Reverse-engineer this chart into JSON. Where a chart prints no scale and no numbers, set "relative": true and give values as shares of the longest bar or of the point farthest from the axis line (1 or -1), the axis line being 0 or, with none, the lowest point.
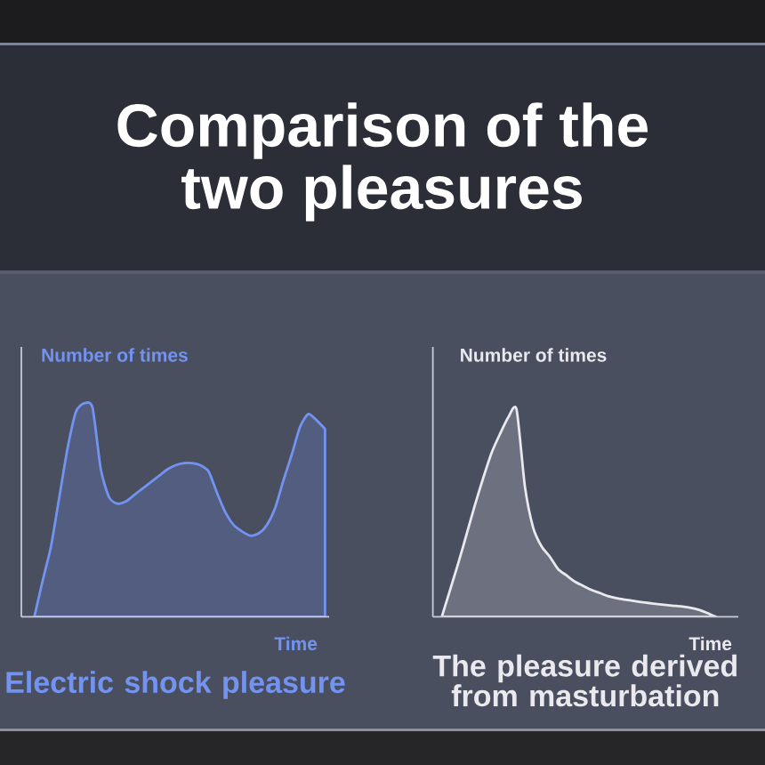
{
  "chart_data": [
    {
      "type": "other",
      "title": "Comparison of the two pleasures"
    },
    {
      "type": "area",
      "title": "Electric shock pleasure",
      "xlabel": "Time",
      "ylabel": "Number of times",
      "relative": true,
      "color": "#7393f0",
      "categories": [
        null,
        null,
        null,
        null,
        null,
        null,
        null,
        null,
        null,
        null,
        null,
        null,
        null,
        null,
        null,
        null,
        null,
        null,
        null,
        null,
        null,
        null,
        null,
        null,
        null,
        null,
        null,
        null,
        null,
        null,
        null,
        null,
        null,
        null,
        null,
        null
      ],
      "values": [
        0,
        0.17,
        0.33,
        0.56,
        0.79,
        0.96,
        1,
        0.98,
        0.69,
        0.56,
        0.53,
        0.54,
        0.57,
        0.6,
        0.63,
        0.66,
        0.69,
        0.71,
        0.72,
        0.72,
        0.71,
        0.68,
        0.58,
        0.49,
        0.43,
        0.4,
        0.38,
        0.39,
        0.43,
        0.51,
        0.64,
        0.76,
        0.89,
        0.95,
        0.92,
        0.88
      ]
    },
    {
      "type": "area",
      "title": "The pleasure derived from masturbation",
      "xlabel": "Time",
      "ylabel": "Number of times",
      "relative": true,
      "color": "#e9e9ee",
      "categories": [
        null,
        null,
        null,
        null,
        null,
        null,
        null,
        null,
        null,
        null,
        null,
        null,
        null,
        null,
        null,
        null,
        null,
        null,
        null,
        null,
        null,
        null,
        null,
        null,
        null,
        null,
        null,
        null,
        null,
        null,
        null,
        null,
        null,
        null
      ],
      "values": [
        0,
        0.13,
        0.26,
        0.4,
        0.54,
        0.67,
        0.79,
        0.88,
        0.96,
        1,
        0.63,
        0.43,
        0.34,
        0.29,
        0.23,
        0.2,
        0.17,
        0.15,
        0.13,
        0.115,
        0.1,
        0.09,
        0.083,
        0.077,
        0.071,
        0.066,
        0.061,
        0.057,
        0.053,
        0.049,
        0.043,
        0.033,
        0.018,
        0
      ]
    }
  ]
}
